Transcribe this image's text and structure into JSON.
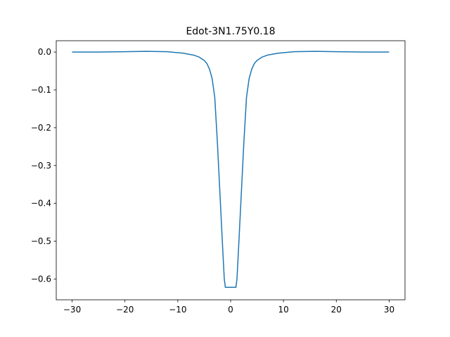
{
  "chart_data": {
    "type": "line",
    "title": "Edot-3N1.75Y0.18",
    "xlabel": "",
    "ylabel": "",
    "xlim": [
      -33,
      33
    ],
    "ylim": [
      -0.655,
      0.03
    ],
    "xticks": [
      -30,
      -20,
      -10,
      0,
      10,
      20,
      30
    ],
    "xtick_labels": [
      "−30",
      "−20",
      "−10",
      "0",
      "10",
      "20",
      "30"
    ],
    "yticks": [
      0.0,
      -0.1,
      -0.2,
      -0.3,
      -0.4,
      -0.5,
      -0.6
    ],
    "ytick_labels": [
      "0.0",
      "−0.1",
      "−0.2",
      "−0.3",
      "−0.4",
      "−0.5",
      "−0.6"
    ],
    "grid": false,
    "series": [
      {
        "color": "#1f77b4",
        "x": [
          -30,
          -25,
          -20,
          -16,
          -12,
          -9,
          -7,
          -6,
          -5,
          -4.5,
          -4,
          -3.5,
          -3,
          -2.5,
          -2,
          -1.5,
          -1.2,
          -1,
          1,
          1.2,
          1.5,
          2,
          2.5,
          3,
          3.5,
          4,
          4.5,
          5,
          6,
          7,
          9,
          12,
          16,
          20,
          25,
          30
        ],
        "y": [
          0.0,
          0.0,
          0.001,
          0.002,
          0.001,
          -0.003,
          -0.008,
          -0.013,
          -0.022,
          -0.03,
          -0.045,
          -0.07,
          -0.12,
          -0.24,
          -0.38,
          -0.52,
          -0.6,
          -0.622,
          -0.622,
          -0.6,
          -0.52,
          -0.38,
          -0.24,
          -0.12,
          -0.07,
          -0.045,
          -0.03,
          -0.022,
          -0.013,
          -0.008,
          -0.003,
          0.001,
          0.002,
          0.001,
          0.0,
          0.0
        ]
      }
    ]
  }
}
